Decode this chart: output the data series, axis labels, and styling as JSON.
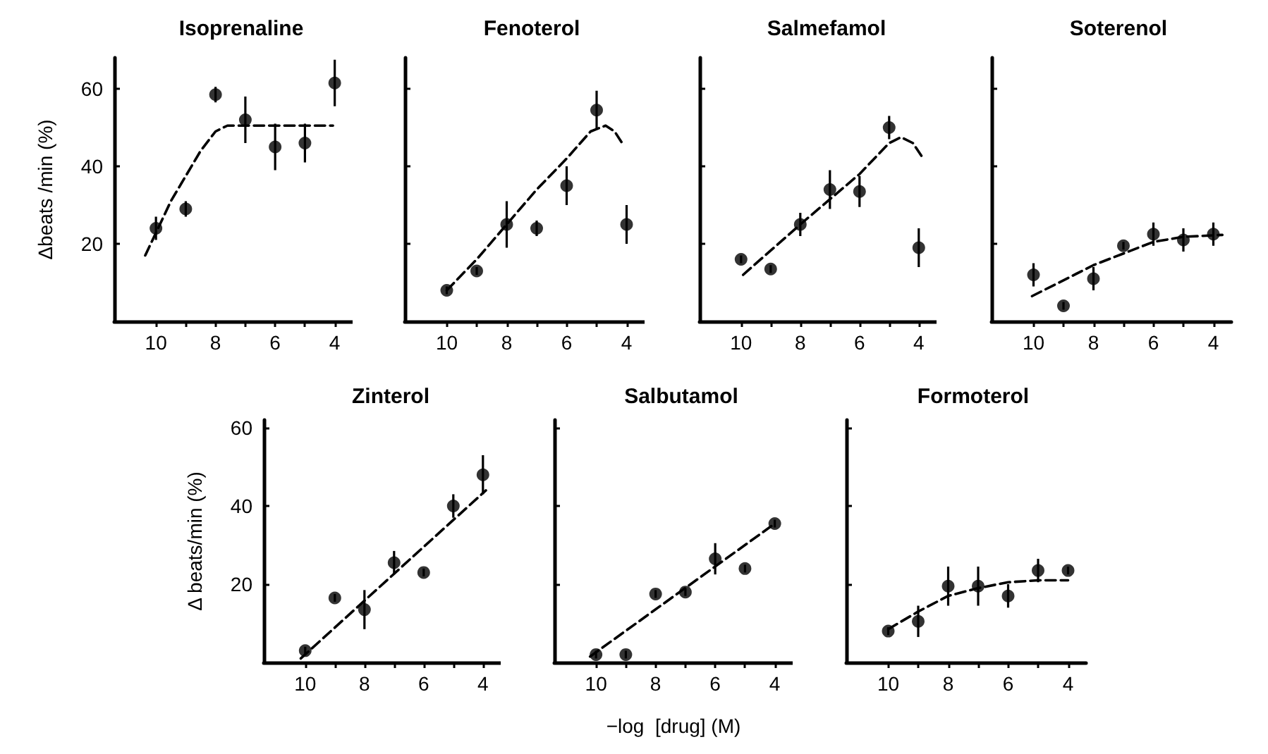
{
  "chart_data": [
    {
      "type": "scatter",
      "title": "Isoprenaline",
      "ylabel": "Δbeats /min (%)",
      "x": [
        10,
        9,
        8,
        7,
        6,
        5,
        4
      ],
      "xlim": [
        11.4,
        3.4
      ],
      "ylim": [
        0,
        68
      ],
      "xticks": [
        10,
        {
          "value": 9,
          "label": null
        },
        8,
        {
          "value": 7,
          "label": null
        },
        6,
        {
          "value": 5,
          "label": null
        },
        4
      ],
      "yticks": [
        20,
        40,
        60
      ],
      "grid": false,
      "marker": "circle",
      "series": [
        {
          "color": "#000000",
          "values": [
            24,
            29,
            58.5,
            52,
            45,
            46,
            61.5
          ],
          "errors": [
            3,
            2,
            2,
            6,
            6,
            5,
            6
          ]
        },
        {
          "type": "line",
          "marker": "none",
          "line_style": "dashed",
          "color": "#000000",
          "x": [
            10.36,
            9.5,
            8.5,
            8,
            7.6,
            4.06
          ],
          "values": [
            17,
            31,
            44,
            49,
            50.5,
            50.5
          ]
        }
      ]
    },
    {
      "type": "scatter",
      "title": "Fenoterol",
      "x": [
        10,
        9,
        8,
        7,
        6,
        5,
        4
      ],
      "xlim": [
        11.4,
        3.4
      ],
      "ylim": [
        0,
        68
      ],
      "xticks": [
        10,
        {
          "value": 9,
          "label": null
        },
        8,
        {
          "value": 7,
          "label": null
        },
        6,
        {
          "value": 5,
          "label": null
        },
        4
      ],
      "yticks": [
        20,
        40,
        60
      ],
      "tick_labels": "x",
      "grid": false,
      "marker": "circle",
      "series": [
        {
          "color": "#000000",
          "values": [
            8,
            13,
            25,
            24,
            35,
            54.5,
            25
          ],
          "errors": [
            1,
            1,
            6,
            2,
            5,
            5,
            5
          ]
        },
        {
          "type": "line",
          "marker": "none",
          "line_style": "dashed",
          "color": "#000000",
          "x": [
            10,
            9,
            8,
            7,
            6,
            5.2,
            4.7,
            4.4,
            4.15
          ],
          "values": [
            8,
            16,
            25,
            34,
            42,
            49,
            50.5,
            49,
            46
          ]
        }
      ]
    },
    {
      "type": "scatter",
      "title": "Salmefamol",
      "x": [
        10,
        9,
        8,
        7,
        6,
        5,
        4
      ],
      "xlim": [
        11.4,
        3.4
      ],
      "ylim": [
        0,
        68
      ],
      "xticks": [
        10,
        {
          "value": 9,
          "label": null
        },
        8,
        {
          "value": 7,
          "label": null
        },
        6,
        {
          "value": 5,
          "label": null
        },
        4
      ],
      "yticks": [
        20,
        40,
        60
      ],
      "tick_labels": "x",
      "grid": false,
      "marker": "circle",
      "series": [
        {
          "color": "#000000",
          "values": [
            16,
            13.5,
            25,
            34,
            33.5,
            50,
            19
          ],
          "errors": [
            1,
            1,
            3,
            5,
            4,
            3,
            5
          ]
        },
        {
          "type": "line",
          "marker": "none",
          "line_style": "dashed",
          "color": "#000000",
          "x": [
            9.93,
            8,
            6,
            5,
            4.6,
            4.2,
            3.85
          ],
          "values": [
            12,
            25,
            38,
            46,
            47.5,
            46,
            42
          ]
        }
      ]
    },
    {
      "type": "scatter",
      "title": "Soterenol",
      "x": [
        10,
        9,
        8,
        7,
        6,
        5,
        4
      ],
      "xlim": [
        11.4,
        3.4
      ],
      "ylim": [
        0,
        68
      ],
      "xticks": [
        10,
        {
          "value": 9,
          "label": null
        },
        8,
        {
          "value": 7,
          "label": null
        },
        6,
        {
          "value": 5,
          "label": null
        },
        4
      ],
      "yticks": [
        20,
        40,
        60
      ],
      "tick_labels": "x",
      "grid": false,
      "marker": "circle",
      "series": [
        {
          "color": "#000000",
          "values": [
            12,
            4,
            11,
            19.5,
            22.5,
            21,
            22.5
          ],
          "errors": [
            3,
            1,
            3,
            1,
            3,
            3,
            3
          ]
        },
        {
          "type": "line",
          "marker": "none",
          "line_style": "dashed",
          "color": "#000000",
          "x": [
            10.05,
            8,
            6,
            5,
            3.7
          ],
          "values": [
            6.5,
            14.5,
            20.5,
            21.8,
            22.3
          ]
        }
      ]
    },
    {
      "type": "scatter",
      "title": "Zinterol",
      "ylabel": "Δ beats/min (%)",
      "x": [
        10,
        9,
        8,
        7,
        6,
        5,
        4
      ],
      "xlim": [
        11.4,
        3.4
      ],
      "ylim": [
        0,
        62
      ],
      "xticks": [
        10,
        {
          "value": 9,
          "label": null
        },
        8,
        {
          "value": 7,
          "label": null
        },
        6,
        {
          "value": 5,
          "label": null
        },
        4
      ],
      "yticks": [
        20,
        40,
        60
      ],
      "grid": false,
      "marker": "circle",
      "series": [
        {
          "color": "#000000",
          "values": [
            3,
            16.5,
            13.5,
            25.5,
            23,
            40,
            48
          ],
          "errors": [
            1,
            1,
            5,
            3,
            1,
            3,
            5
          ]
        },
        {
          "type": "line",
          "marker": "none",
          "line_style": "dashed",
          "color": "#000000",
          "x": [
            10.15,
            3.9
          ],
          "values": [
            1,
            44
          ]
        }
      ]
    },
    {
      "type": "scatter",
      "title": "Salbutamol",
      "xlabel": "−log  [drug] (M)",
      "x": [
        10,
        9,
        8,
        7,
        6,
        5,
        4
      ],
      "xlim": [
        11.4,
        3.4
      ],
      "ylim": [
        0,
        62
      ],
      "xticks": [
        10,
        {
          "value": 9,
          "label": null
        },
        8,
        {
          "value": 7,
          "label": null
        },
        6,
        {
          "value": 5,
          "label": null
        },
        4
      ],
      "yticks": [
        20,
        40,
        60
      ],
      "tick_labels": "x",
      "grid": false,
      "marker": "circle",
      "series": [
        {
          "color": "#000000",
          "values": [
            2,
            2,
            17.5,
            18,
            26.5,
            24,
            35.5
          ],
          "errors": [
            1,
            1,
            1,
            1,
            4,
            1,
            1
          ]
        },
        {
          "type": "line",
          "marker": "none",
          "line_style": "dashed",
          "color": "#000000",
          "x": [
            10.2,
            4
          ],
          "values": [
            1.5,
            35.5
          ]
        }
      ]
    },
    {
      "type": "scatter",
      "title": "Formoterol",
      "x": [
        10,
        9,
        8,
        7,
        6,
        5,
        4
      ],
      "xlim": [
        11.4,
        3.4
      ],
      "ylim": [
        0,
        62
      ],
      "xticks": [
        10,
        {
          "value": 9,
          "label": null
        },
        8,
        {
          "value": 7,
          "label": null
        },
        6,
        {
          "value": 5,
          "label": null
        },
        4
      ],
      "yticks": [
        20,
        40,
        60
      ],
      "tick_labels": "x",
      "grid": false,
      "marker": "circle",
      "series": [
        {
          "color": "#000000",
          "values": [
            8,
            10.5,
            19.5,
            19.5,
            17,
            23.5,
            23.5
          ],
          "errors": [
            1,
            4,
            5,
            5,
            3,
            3,
            1
          ]
        },
        {
          "type": "line",
          "marker": "none",
          "line_style": "dashed",
          "color": "#000000",
          "x": [
            10,
            9,
            8,
            7,
            6,
            5,
            4
          ],
          "values": [
            8.5,
            13,
            17,
            19,
            20.5,
            21,
            21
          ]
        }
      ]
    }
  ]
}
